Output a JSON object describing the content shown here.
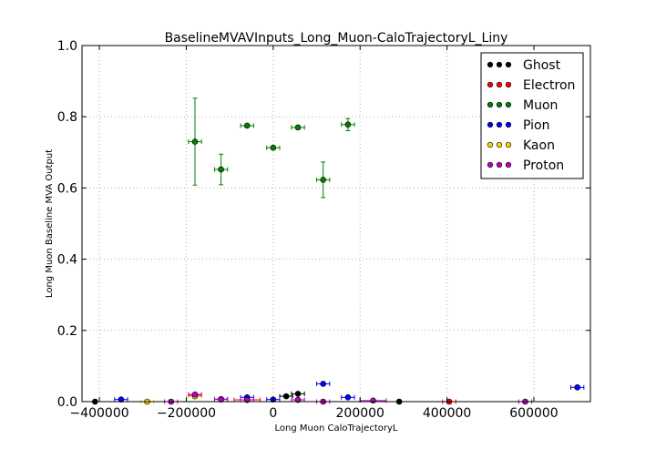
{
  "chart_data": {
    "type": "scatter",
    "title": "BaselineMVAVInputs_Long_Muon-CaloTrajectoryL_Liny",
    "xlabel": "Long Muon CaloTrajectoryL",
    "ylabel": "Long Muon Baseline MVA Output",
    "xlim": [
      -440000,
      730000
    ],
    "ylim": [
      0.0,
      1.0
    ],
    "xticks": [
      -400000,
      -200000,
      0,
      200000,
      400000,
      600000
    ],
    "xtick_labels": [
      "−400000",
      "−200000",
      "0",
      "200000",
      "400000",
      "600000"
    ],
    "yticks": [
      0.0,
      0.2,
      0.4,
      0.6,
      0.8,
      1.0
    ],
    "ytick_labels": [
      "0.0",
      "0.2",
      "0.4",
      "0.6",
      "0.8",
      "1.0"
    ],
    "grid": true,
    "legend_position": "top-right",
    "series": [
      {
        "name": "Ghost",
        "color": "#000000",
        "points": [
          {
            "x": -410000,
            "y": 0.0,
            "xerr": 0,
            "yerr": 0
          },
          {
            "x": 30000,
            "y": 0.015,
            "xerr": 15000,
            "yerr": 0.003
          },
          {
            "x": 57000,
            "y": 0.022,
            "xerr": 15000,
            "yerr": 0.004
          },
          {
            "x": 290000,
            "y": 0.0,
            "xerr": 0,
            "yerr": 0
          }
        ]
      },
      {
        "name": "Electron",
        "color": "#ff0000",
        "points": [
          {
            "x": -180000,
            "y": 0.018,
            "xerr": 15000,
            "yerr": 0.002
          },
          {
            "x": -60000,
            "y": 0.005,
            "xerr": 30000,
            "yerr": 0.002
          },
          {
            "x": 405000,
            "y": 0.0,
            "xerr": 15000,
            "yerr": 0
          }
        ]
      },
      {
        "name": "Muon",
        "color": "#008000",
        "points": [
          {
            "x": -180000,
            "y": 0.73,
            "xerr": 15000,
            "yerr": 0.122
          },
          {
            "x": -120000,
            "y": 0.652,
            "xerr": 15000,
            "yerr": 0.043
          },
          {
            "x": -60000,
            "y": 0.775,
            "xerr": 15000,
            "yerr": 0.004
          },
          {
            "x": 0,
            "y": 0.713,
            "xerr": 15000,
            "yerr": 0.004
          },
          {
            "x": 57000,
            "y": 0.77,
            "xerr": 15000,
            "yerr": 0.005
          },
          {
            "x": 115000,
            "y": 0.623,
            "xerr": 15000,
            "yerr": 0.05
          },
          {
            "x": 172000,
            "y": 0.778,
            "xerr": 15000,
            "yerr": 0.017
          }
        ]
      },
      {
        "name": "Pion",
        "color": "#0000ff",
        "points": [
          {
            "x": -350000,
            "y": 0.006,
            "xerr": 15000,
            "yerr": 0.001
          },
          {
            "x": -120000,
            "y": 0.007,
            "xerr": 15000,
            "yerr": 0.001
          },
          {
            "x": -60000,
            "y": 0.012,
            "xerr": 15000,
            "yerr": 0.001
          },
          {
            "x": 0,
            "y": 0.006,
            "xerr": 15000,
            "yerr": 0.001
          },
          {
            "x": 115000,
            "y": 0.05,
            "xerr": 15000,
            "yerr": 0.003
          },
          {
            "x": 172000,
            "y": 0.012,
            "xerr": 15000,
            "yerr": 0.002
          },
          {
            "x": 700000,
            "y": 0.04,
            "xerr": 15000,
            "yerr": 0.002
          }
        ]
      },
      {
        "name": "Kaon",
        "color": "#ffd700",
        "points": [
          {
            "x": -290000,
            "y": 0.0,
            "xerr": 15000,
            "yerr": 0
          },
          {
            "x": -180000,
            "y": 0.015,
            "xerr": 15000,
            "yerr": 0.002
          }
        ]
      },
      {
        "name": "Proton",
        "color": "#bf00bf",
        "points": [
          {
            "x": -235000,
            "y": 0.0,
            "xerr": 15000,
            "yerr": 0
          },
          {
            "x": -180000,
            "y": 0.02,
            "xerr": 15000,
            "yerr": 0.002
          },
          {
            "x": -120000,
            "y": 0.006,
            "xerr": 15000,
            "yerr": 0.001
          },
          {
            "x": -60000,
            "y": 0.005,
            "xerr": 15000,
            "yerr": 0.001
          },
          {
            "x": 57000,
            "y": 0.005,
            "xerr": 15000,
            "yerr": 0.001
          },
          {
            "x": 115000,
            "y": 0.0,
            "xerr": 15000,
            "yerr": 0
          },
          {
            "x": 230000,
            "y": 0.003,
            "xerr": 30000,
            "yerr": 0.001
          },
          {
            "x": 580000,
            "y": 0.0,
            "xerr": 15000,
            "yerr": 0
          }
        ]
      }
    ]
  }
}
